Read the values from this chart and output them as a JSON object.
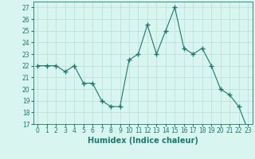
{
  "x": [
    0,
    1,
    2,
    3,
    4,
    5,
    6,
    7,
    8,
    9,
    10,
    11,
    12,
    13,
    14,
    15,
    16,
    17,
    18,
    19,
    20,
    21,
    22,
    23
  ],
  "y": [
    22,
    22,
    22,
    21.5,
    22,
    20.5,
    20.5,
    19,
    18.5,
    18.5,
    22.5,
    23,
    25.5,
    23,
    25,
    27,
    23.5,
    23,
    23.5,
    22,
    20,
    19.5,
    18.5,
    16.5
  ],
  "line_color": "#1a7a6e",
  "marker": "+",
  "marker_size": 4,
  "bg_color": "#d8f5f0",
  "grid_color": "#b8ddd8",
  "xlabel": "Humidex (Indice chaleur)",
  "ylim": [
    17,
    27.5
  ],
  "xlim": [
    -0.5,
    23.5
  ],
  "yticks": [
    17,
    18,
    19,
    20,
    21,
    22,
    23,
    24,
    25,
    26,
    27
  ],
  "xticks": [
    0,
    1,
    2,
    3,
    4,
    5,
    6,
    7,
    8,
    9,
    10,
    11,
    12,
    13,
    14,
    15,
    16,
    17,
    18,
    19,
    20,
    21,
    22,
    23
  ],
  "xlabel_fontsize": 7,
  "tick_fontsize": 5.5,
  "axis_color": "#1a7a6e",
  "linewidth": 0.8
}
